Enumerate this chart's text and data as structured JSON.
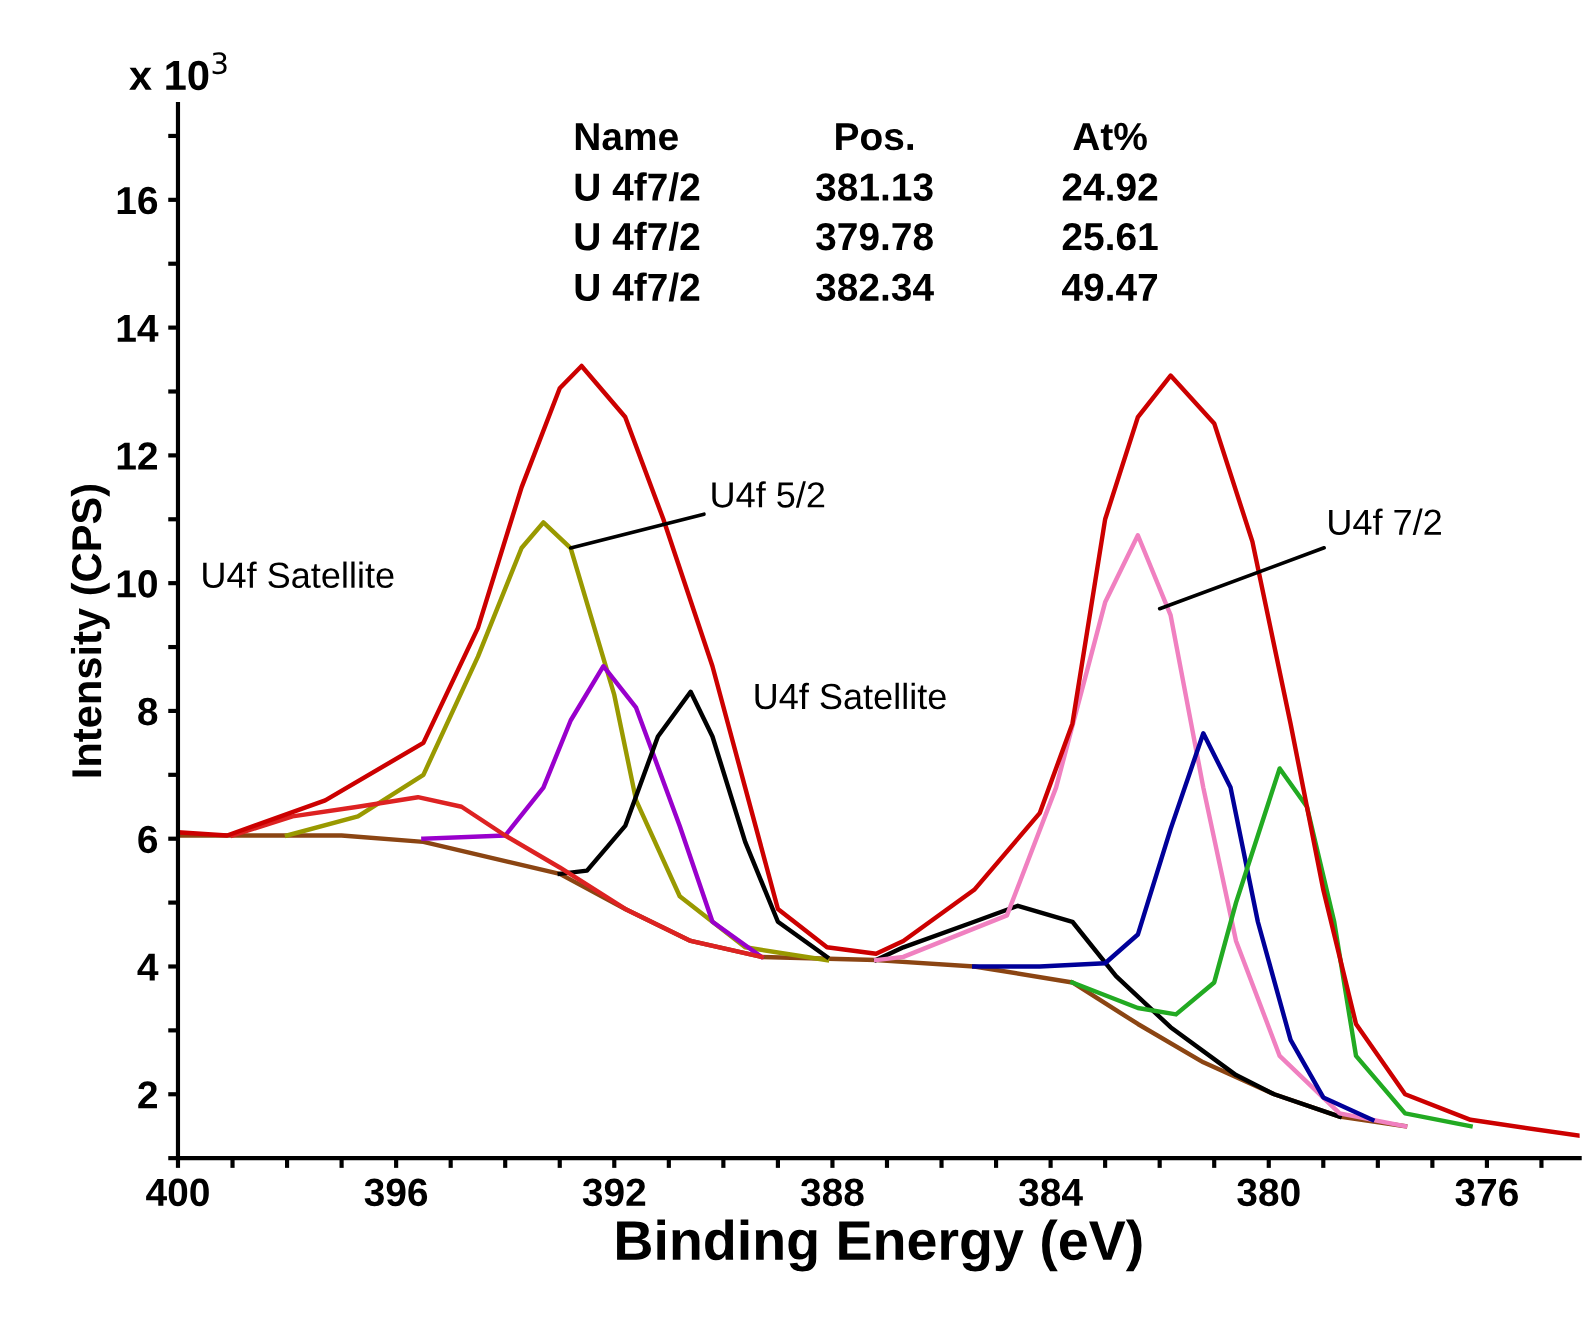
{
  "chart_data": {
    "type": "line",
    "xlabel": "Binding Energy (eV)",
    "ylabel": "Intensity (CPS)",
    "xlim": [
      400,
      374.3
    ],
    "ylim": [
      1,
      17.5
    ],
    "xticks": [
      400,
      {
        "value": 399,
        "label": null
      },
      {
        "value": 398,
        "label": null
      },
      {
        "value": 397,
        "label": null
      },
      396,
      {
        "value": 395,
        "label": null
      },
      {
        "value": 394,
        "label": null
      },
      {
        "value": 393,
        "label": null
      },
      392,
      {
        "value": 391,
        "label": null
      },
      {
        "value": 390,
        "label": null
      },
      {
        "value": 389,
        "label": null
      },
      388,
      {
        "value": 387,
        "label": null
      },
      {
        "value": 386,
        "label": null
      },
      {
        "value": 385,
        "label": null
      },
      384,
      {
        "value": 383,
        "label": null
      },
      {
        "value": 382,
        "label": null
      },
      {
        "value": 381,
        "label": null
      },
      380,
      {
        "value": 379,
        "label": null
      },
      {
        "value": 378,
        "label": null
      },
      {
        "value": 377,
        "label": null
      },
      376,
      {
        "value": 375,
        "label": null
      }
    ],
    "yticks": [
      {
        "value": 1,
        "label": null
      },
      2,
      {
        "value": 3,
        "label": null
      },
      4,
      {
        "value": 5,
        "label": null
      },
      6,
      {
        "value": 7,
        "label": null
      },
      8,
      {
        "value": 9,
        "label": null
      },
      10,
      {
        "value": 11,
        "label": null
      },
      12,
      {
        "value": 13,
        "label": null
      },
      14,
      {
        "value": 15,
        "label": null
      },
      16,
      {
        "value": 17,
        "label": null
      }
    ],
    "grid": false,
    "legend": false,
    "marker": "none",
    "line_style": "solid",
    "series": [
      {
        "color": "#8b4513",
        "x": [
          400,
          397,
          395.5,
          393.0,
          391.8,
          390.6,
          389.3,
          387.2,
          385.4,
          383.6,
          382.4,
          381.2,
          379.9,
          378.7,
          377.5
        ],
        "values": [
          6.05,
          6.05,
          5.95,
          5.45,
          4.9,
          4.4,
          4.15,
          4.1,
          4.0,
          3.75,
          3.1,
          2.5,
          2.0,
          1.65,
          1.5
        ]
      },
      {
        "color": "#999900",
        "x": [
          398,
          396.7,
          395.5,
          394.5,
          393.7,
          393.3,
          392.8,
          392.0,
          391.6,
          390.8,
          389.6,
          388.1
        ],
        "values": [
          6.05,
          6.35,
          7.0,
          8.85,
          10.55,
          10.95,
          10.55,
          8.25,
          6.6,
          5.1,
          4.3,
          4.1
        ]
      },
      {
        "color": "#9900cc",
        "x": [
          395.5,
          394.0,
          393.3,
          392.8,
          392.2,
          391.6,
          390.8,
          390.2,
          389.3
        ],
        "values": [
          6.0,
          6.05,
          6.8,
          7.85,
          8.7,
          8.05,
          6.2,
          4.7,
          4.15
        ]
      },
      {
        "color": "#000000",
        "x": [
          393.0,
          392.5,
          391.8,
          391.2,
          390.6,
          390.2,
          389.6,
          389.0,
          388.1
        ],
        "values": [
          5.45,
          5.5,
          6.2,
          7.6,
          8.3,
          7.6,
          5.95,
          4.7,
          4.15
        ]
      },
      {
        "color": "#dd2222",
        "x": [
          399,
          397.9,
          396.7,
          395.6,
          394.8,
          394.0,
          393.0,
          391.8,
          390.6,
          389.3
        ],
        "values": [
          6.05,
          6.35,
          6.5,
          6.65,
          6.5,
          6.05,
          5.55,
          4.9,
          4.4,
          4.15
        ]
      },
      {
        "color": "#000000",
        "x": [
          387.2,
          386.7,
          385.4,
          384.6,
          383.6,
          382.8,
          381.8,
          380.6,
          379.9,
          378.7
        ],
        "values": [
          4.1,
          4.3,
          4.7,
          4.95,
          4.7,
          3.85,
          3.05,
          2.3,
          2.0,
          1.65
        ]
      },
      {
        "color": "#f080c0",
        "x": [
          387.2,
          386.7,
          384.8,
          383.9,
          383.0,
          382.4,
          381.8,
          381.2,
          380.6,
          379.8,
          378.7,
          377.5
        ],
        "values": [
          4.1,
          4.15,
          4.8,
          6.8,
          9.7,
          10.75,
          9.5,
          6.8,
          4.4,
          2.6,
          1.7,
          1.5
        ]
      },
      {
        "color": "#000099",
        "x": [
          385.4,
          384.2,
          383.0,
          382.4,
          381.8,
          381.2,
          380.7,
          380.2,
          379.6,
          379.0,
          378.1
        ],
        "values": [
          4.0,
          4.0,
          4.05,
          4.5,
          6.15,
          7.65,
          6.8,
          4.7,
          2.85,
          1.95,
          1.6
        ]
      },
      {
        "color": "#22aa22",
        "x": [
          383.6,
          382.4,
          381.7,
          381.0,
          380.6,
          379.8,
          379.3,
          378.8,
          378.4,
          377.5,
          376.3
        ],
        "values": [
          3.75,
          3.35,
          3.25,
          3.75,
          5.0,
          7.1,
          6.5,
          4.7,
          2.6,
          1.7,
          1.5
        ]
      },
      {
        "color": "#cc0000",
        "x": [
          400,
          399.1,
          397.3,
          395.5,
          394.5,
          393.7,
          393.0,
          392.6,
          391.8,
          391.1,
          390.2,
          389.6,
          389.0,
          388.1,
          387.2,
          386.7,
          385.4,
          384.2,
          383.6,
          383.0,
          382.4,
          381.8,
          381.0,
          380.3,
          379.6,
          379.0,
          378.4,
          377.5,
          376.3,
          374.3
        ],
        "values": [
          6.1,
          6.05,
          6.6,
          7.5,
          9.3,
          11.5,
          13.05,
          13.4,
          12.6,
          11.0,
          8.7,
          6.8,
          4.9,
          4.3,
          4.2,
          4.4,
          5.2,
          6.4,
          7.8,
          11.0,
          12.6,
          13.25,
          12.5,
          10.65,
          7.8,
          5.2,
          3.1,
          2.0,
          1.6,
          1.35
        ]
      }
    ],
    "annotations": [
      "x 10$^{3}$",
      "Name\tPos.\tAt%",
      "U 4f7/2\t381.13\t24.92",
      "U 4f7/2\t379.78\t25.61",
      "U 4f7/2\t382.34\t49.47",
      {
        "text": "U4f 5/2",
        "x": 392.8,
        "y": 10.55
      },
      {
        "text": "U4f 7/2",
        "x": 382.0,
        "y": 9.6
      },
      "U4f Satellite",
      "U4f Satellite"
    ]
  }
}
